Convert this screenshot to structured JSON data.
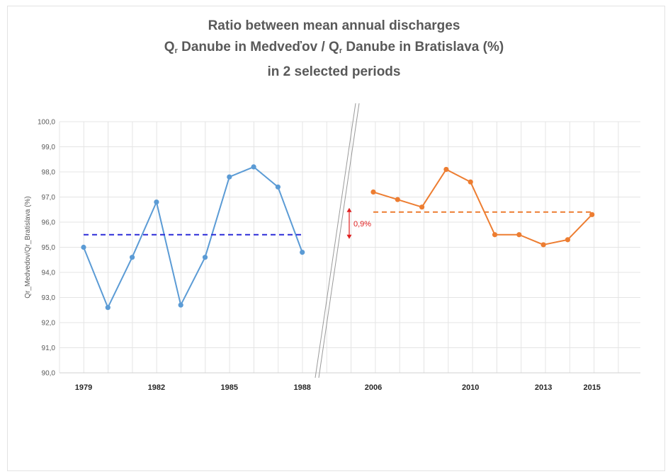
{
  "title": {
    "line1": "Ratio between mean annual discharges",
    "line2_a": "Q",
    "line2_sub_a": "r",
    "line2_b": " Danube in Medveďov / Q",
    "line2_sub_b": "r",
    "line2_c": " Danube in Bratislava (%)",
    "line3": "in 2 selected periods"
  },
  "chart_data": {
    "type": "line",
    "ylabel": "Qr_Medvedov/Qr_Bratislava (%)",
    "ylim": [
      90.0,
      100.0
    ],
    "ytick_labels": [
      "90,0",
      "91,0",
      "92,0",
      "93,0",
      "94,0",
      "95,0",
      "96,0",
      "97,0",
      "98,0",
      "99,0",
      "100,0"
    ],
    "grid": true,
    "series": [
      {
        "period": "1979-1988",
        "color": "#5b9bd5",
        "x": [
          1979,
          1980,
          1981,
          1982,
          1983,
          1984,
          1985,
          1986,
          1987,
          1988
        ],
        "values": [
          95.0,
          92.6,
          94.6,
          96.8,
          92.7,
          94.6,
          97.8,
          98.2,
          97.4,
          94.8
        ],
        "mean": 95.5,
        "mean_color": "#2b2bd8"
      },
      {
        "period": "2006-2015",
        "color": "#ed7d31",
        "x": [
          2006,
          2007,
          2008,
          2009,
          2010,
          2011,
          2012,
          2013,
          2014,
          2015
        ],
        "values": [
          97.2,
          96.9,
          96.6,
          98.1,
          97.6,
          95.5,
          95.5,
          95.1,
          95.3,
          96.3
        ],
        "mean": 96.4,
        "mean_color": "#ed7d31"
      }
    ],
    "x_tick_labels": [
      {
        "label": "1979",
        "x": 1979
      },
      {
        "label": "1982",
        "x": 1982
      },
      {
        "label": "1985",
        "x": 1985
      },
      {
        "label": "1988",
        "x": 1988
      },
      {
        "label": "2006",
        "x": 2006
      },
      {
        "label": "2010",
        "x": 2010
      },
      {
        "label": "2013",
        "x": 2013
      },
      {
        "label": "2015",
        "x": 2015
      }
    ],
    "annotation": {
      "text": "0,9%",
      "color": "#e02020"
    }
  }
}
